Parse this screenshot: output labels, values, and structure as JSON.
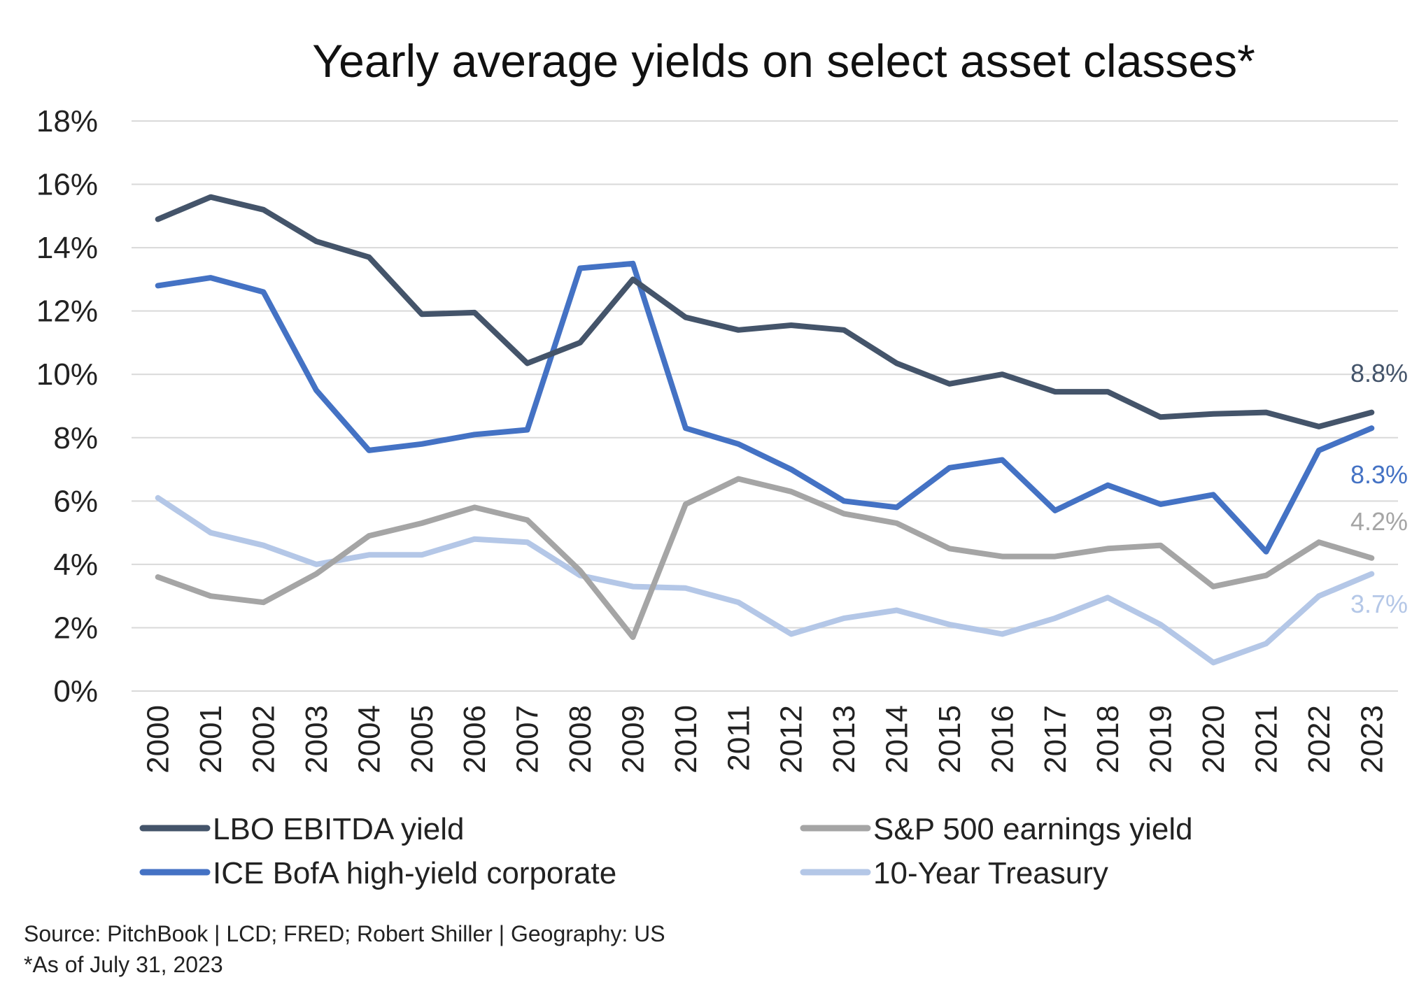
{
  "chart_data": {
    "type": "line",
    "title": "Yearly average yields on select asset classes*",
    "xlabel": "",
    "ylabel": "",
    "ylim": [
      0,
      18
    ],
    "yticks": [
      "0%",
      "2%",
      "4%",
      "6%",
      "8%",
      "10%",
      "12%",
      "14%",
      "16%",
      "18%"
    ],
    "ytick_values": [
      0,
      2,
      4,
      6,
      8,
      10,
      12,
      14,
      16,
      18
    ],
    "grid": true,
    "legend_position": "bottom",
    "categories": [
      "2000",
      "2001",
      "2002",
      "2003",
      "2004",
      "2005",
      "2006",
      "2007",
      "2008",
      "2009",
      "2010",
      "2011",
      "2012",
      "2013",
      "2014",
      "2015",
      "2016",
      "2017",
      "2018",
      "2019",
      "2020",
      "2021",
      "2022",
      "2023"
    ],
    "series": [
      {
        "name": "LBO EBITDA yield",
        "color": "#44546a",
        "end_label": "8.8%",
        "values": [
          14.9,
          15.6,
          15.2,
          14.2,
          13.7,
          11.9,
          11.95,
          10.35,
          11.0,
          13.0,
          11.8,
          11.4,
          11.55,
          11.4,
          10.35,
          9.7,
          10.0,
          9.45,
          9.45,
          8.65,
          8.75,
          8.8,
          8.35,
          8.8
        ]
      },
      {
        "name": "S&P 500 earnings yield",
        "color": "#a5a5a5",
        "end_label": "4.2%",
        "values": [
          3.6,
          3.0,
          2.8,
          3.7,
          4.9,
          5.3,
          5.8,
          5.4,
          3.8,
          1.7,
          5.9,
          6.7,
          6.3,
          5.6,
          5.3,
          4.5,
          4.25,
          4.25,
          4.5,
          4.6,
          3.3,
          3.65,
          4.7,
          4.2
        ]
      },
      {
        "name": "ICE BofA high-yield corporate",
        "color": "#4472c4",
        "end_label": "8.3%",
        "values": [
          12.8,
          13.05,
          12.6,
          9.5,
          7.6,
          7.8,
          8.1,
          8.25,
          13.35,
          13.5,
          8.3,
          7.8,
          7.0,
          6.0,
          5.8,
          7.05,
          7.3,
          5.7,
          6.5,
          5.9,
          6.2,
          4.4,
          7.6,
          8.3
        ]
      },
      {
        "name": "10-Year Treasury",
        "color": "#b4c7e7",
        "end_label": "3.7%",
        "values": [
          6.1,
          5.0,
          4.6,
          4.0,
          4.3,
          4.3,
          4.8,
          4.7,
          3.65,
          3.3,
          3.25,
          2.8,
          1.8,
          2.3,
          2.55,
          2.1,
          1.8,
          2.3,
          2.95,
          2.1,
          0.9,
          1.5,
          3.0,
          3.7
        ]
      }
    ]
  },
  "source_line": "Source: PitchBook | LCD; FRED; Robert Shiller | Geography: US",
  "footnote": "*As of July 31, 2023"
}
